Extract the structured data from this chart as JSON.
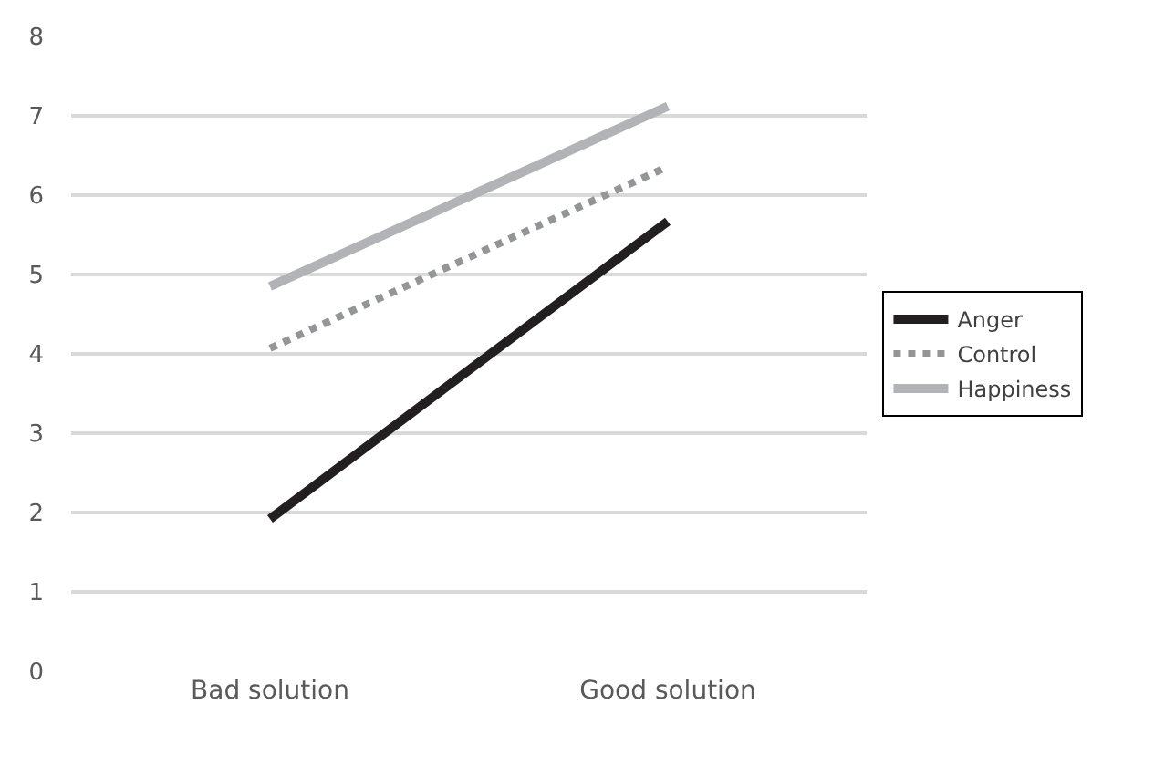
{
  "chart_data": {
    "type": "line",
    "categories": [
      "Bad solution",
      "Good solution"
    ],
    "series": [
      {
        "name": "Anger",
        "color": "#231f20",
        "values": [
          1.92,
          5.67
        ],
        "line_style": "solid"
      },
      {
        "name": "Control",
        "color": "#939598",
        "values": [
          4.07,
          6.36
        ],
        "line_style": "dotted"
      },
      {
        "name": "Happiness",
        "color": "#b1b3b6",
        "values": [
          4.85,
          7.12
        ],
        "line_style": "solid"
      }
    ],
    "ylim": [
      0,
      8
    ],
    "yticks": [
      0,
      1,
      2,
      3,
      4,
      5,
      6,
      7,
      8
    ],
    "grid": "y",
    "legend": "right",
    "marker": "none"
  }
}
